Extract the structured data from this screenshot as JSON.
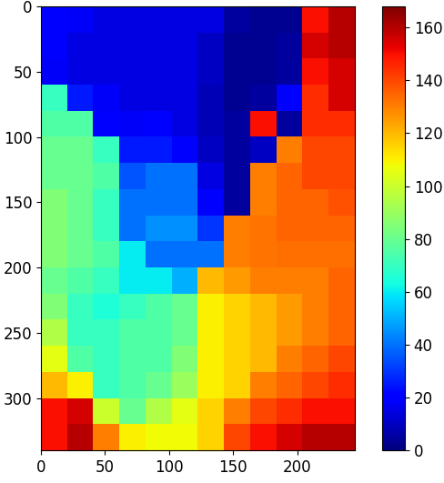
{
  "chart_data": {
    "type": "heatmap",
    "color": "jet",
    "xlim": [
      0,
      245
    ],
    "ylim": [
      340,
      0
    ],
    "xticks": [
      0,
      50,
      100,
      150,
      200
    ],
    "yticks": [
      0,
      50,
      100,
      150,
      200,
      250,
      300
    ],
    "clim": [
      0,
      168
    ],
    "cticks": [
      0,
      20,
      40,
      60,
      80,
      100,
      120,
      140,
      160
    ],
    "cells": [
      [
        20,
        18,
        15,
        15,
        15,
        15,
        15,
        5,
        3,
        3,
        150,
        160
      ],
      [
        20,
        15,
        15,
        15,
        15,
        15,
        10,
        3,
        3,
        5,
        155,
        160
      ],
      [
        18,
        15,
        15,
        15,
        15,
        15,
        10,
        3,
        3,
        5,
        150,
        155
      ],
      [
        70,
        25,
        18,
        15,
        15,
        15,
        8,
        3,
        5,
        20,
        145,
        155
      ],
      [
        75,
        75,
        20,
        18,
        20,
        15,
        8,
        5,
        150,
        5,
        145,
        145
      ],
      [
        80,
        80,
        70,
        25,
        25,
        20,
        10,
        5,
        10,
        130,
        140,
        140
      ],
      [
        80,
        80,
        75,
        35,
        40,
        40,
        15,
        5,
        130,
        135,
        140,
        140
      ],
      [
        85,
        80,
        70,
        40,
        40,
        40,
        20,
        5,
        130,
        135,
        135,
        138
      ],
      [
        85,
        80,
        70,
        40,
        45,
        45,
        30,
        130,
        132,
        135,
        135,
        135
      ],
      [
        85,
        80,
        75,
        60,
        40,
        40,
        40,
        130,
        132,
        133,
        133,
        133
      ],
      [
        80,
        75,
        70,
        60,
        60,
        50,
        120,
        125,
        130,
        130,
        130,
        135
      ],
      [
        85,
        70,
        65,
        70,
        75,
        80,
        110,
        115,
        120,
        125,
        130,
        135
      ],
      [
        95,
        70,
        70,
        75,
        75,
        80,
        110,
        115,
        120,
        125,
        130,
        135
      ],
      [
        105,
        75,
        70,
        75,
        75,
        85,
        110,
        115,
        120,
        130,
        135,
        140
      ],
      [
        120,
        110,
        70,
        75,
        80,
        90,
        110,
        115,
        130,
        135,
        140,
        145
      ],
      [
        150,
        155,
        100,
        80,
        95,
        105,
        115,
        130,
        140,
        145,
        150,
        150
      ],
      [
        150,
        160,
        130,
        110,
        108,
        108,
        115,
        140,
        150,
        155,
        160,
        160
      ]
    ]
  }
}
